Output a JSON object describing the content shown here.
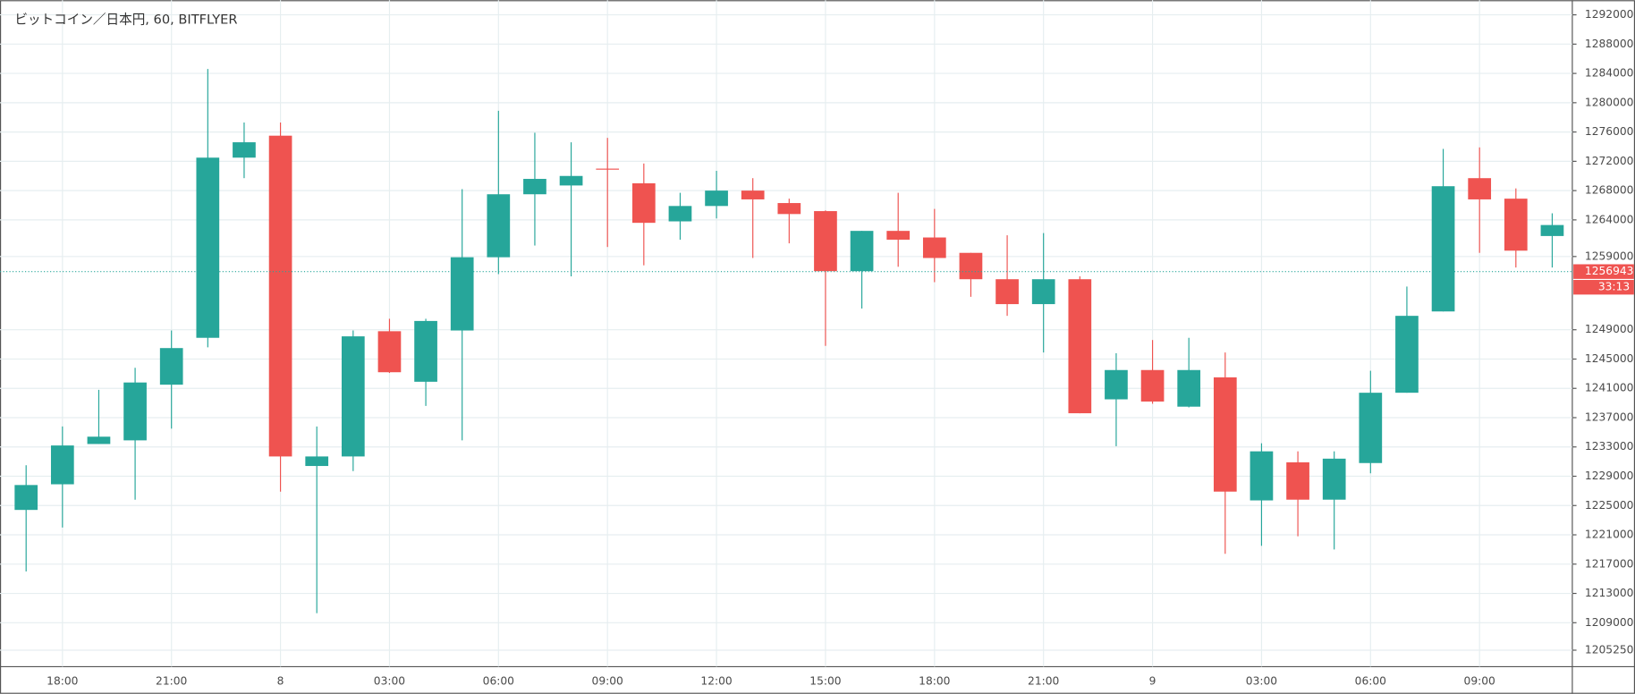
{
  "chart_data": {
    "type": "candlestick",
    "title": "ビットコイン／日本円, 60, BITFLYER",
    "categories": [
      null,
      "18:00",
      null,
      null,
      "21:00",
      null,
      null,
      "8",
      null,
      null,
      "03:00",
      null,
      null,
      "06:00",
      null,
      null,
      "09:00",
      null,
      null,
      "12:00",
      null,
      null,
      "15:00",
      null,
      null,
      "18:00",
      null,
      null,
      "21:00",
      null,
      null,
      "9",
      null,
      null,
      "03:00",
      null,
      null,
      "06:00",
      null,
      null,
      "09:00",
      null,
      null
    ],
    "open": [
      1224400,
      1227900,
      1233400,
      1233900,
      1241500,
      1247900,
      1272500,
      1275500,
      1230400,
      1231700,
      1248800,
      1241900,
      1248900,
      1258900,
      1267500,
      1268700,
      1271000,
      1269000,
      1263800,
      1265900,
      1268000,
      1266300,
      1265200,
      1257000,
      1262500,
      1261600,
      1259500,
      1255900,
      1252500,
      1255900,
      1239500,
      1243500,
      1238500,
      1242500,
      1225700,
      1230900,
      1225800,
      1230800,
      1240400,
      1251500,
      1269700,
      1266900,
      1261800
    ],
    "high": [
      1230500,
      1235800,
      1240800,
      1243800,
      1248900,
      1284600,
      1277300,
      1277300,
      1235800,
      1248900,
      1250500,
      1250500,
      1268200,
      1278900,
      1275900,
      1274600,
      1275200,
      1271700,
      1267700,
      1270700,
      1269700,
      1266900,
      1265300,
      1262500,
      1267700,
      1265500,
      1259500,
      1261900,
      1262200,
      1256300,
      1245800,
      1247600,
      1247900,
      1245900,
      1233500,
      1232400,
      1232400,
      1243400,
      1254900,
      1273700,
      1273900,
      1268300,
      1264900
    ],
    "low": [
      1216000,
      1222000,
      1233400,
      1225800,
      1235500,
      1246600,
      1269700,
      1226900,
      1210300,
      1229700,
      1243100,
      1238600,
      1233900,
      1256600,
      1260500,
      1256300,
      1260300,
      1257800,
      1261300,
      1264200,
      1258800,
      1260800,
      1246800,
      1251900,
      1257600,
      1255500,
      1253500,
      1250900,
      1245900,
      1237600,
      1233100,
      1238900,
      1238400,
      1218400,
      1219500,
      1220800,
      1219000,
      1229400,
      1240400,
      1251500,
      1259500,
      1257500,
      1257500
    ],
    "close": [
      1227800,
      1233200,
      1234400,
      1241800,
      1246500,
      1272500,
      1274600,
      1231700,
      1231700,
      1248100,
      1243200,
      1250200,
      1258900,
      1267500,
      1269600,
      1270000,
      1270900,
      1263600,
      1265900,
      1268000,
      1266800,
      1264800,
      1257000,
      1262500,
      1261300,
      1258800,
      1255900,
      1252500,
      1255900,
      1237600,
      1243500,
      1239200,
      1243500,
      1226900,
      1232400,
      1225800,
      1231400,
      1240400,
      1250900,
      1268600,
      1266800,
      1259800,
      1263300
    ],
    "up_color": "#26a69a",
    "down_color": "#ef5350",
    "ylim": [
      1203000,
      1294000
    ],
    "yticks": [
      1292000,
      1288000,
      1284000,
      1280000,
      1276000,
      1272000,
      1268000,
      1264000,
      1259000,
      1249000,
      1245000,
      1241000,
      1237000,
      1233000,
      1229000,
      1225000,
      1221000,
      1217000,
      1213000,
      1209000,
      1205250
    ],
    "grid": true,
    "last_price": 1256943,
    "countdown": "33:13"
  }
}
